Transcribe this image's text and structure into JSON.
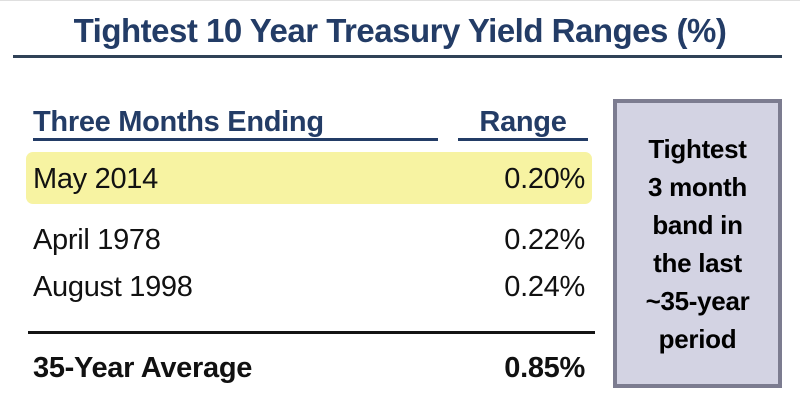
{
  "title": "Tightest 10 Year Treasury Yield Ranges (%)",
  "table": {
    "col1_header": "Three Months Ending",
    "col2_header": "Range",
    "rows": [
      {
        "period": "May 2014",
        "range": "0.20%",
        "highlighted": true
      },
      {
        "period": "April 1978",
        "range": "0.22%",
        "highlighted": false
      },
      {
        "period": "August 1998",
        "range": "0.24%",
        "highlighted": false
      }
    ],
    "summary": {
      "label": "35-Year Average",
      "value": "0.85%"
    }
  },
  "callout": {
    "lines": [
      "Tightest",
      "3 month",
      "band in",
      "the last",
      "~35-year",
      "period"
    ]
  },
  "colors": {
    "navy": "#233C66",
    "title-rule": "#304257",
    "highlight": "#F7F3A2",
    "callout-bg": "#D3D3E3",
    "callout-border": "#7C7C90",
    "row-text": "#111111"
  },
  "chart_data": {
    "type": "table",
    "title": "Tightest 10 Year Treasury Yield Ranges (%)",
    "columns": [
      "Three Months Ending",
      "Range"
    ],
    "rows": [
      [
        "May 2014",
        "0.20%"
      ],
      [
        "April 1978",
        "0.22%"
      ],
      [
        "August 1998",
        "0.24%"
      ]
    ],
    "summary_row": [
      "35-Year Average",
      "0.85%"
    ],
    "highlighted_row": "May 2014",
    "annotation": "Tightest 3 month band in the last ~35-year period"
  }
}
